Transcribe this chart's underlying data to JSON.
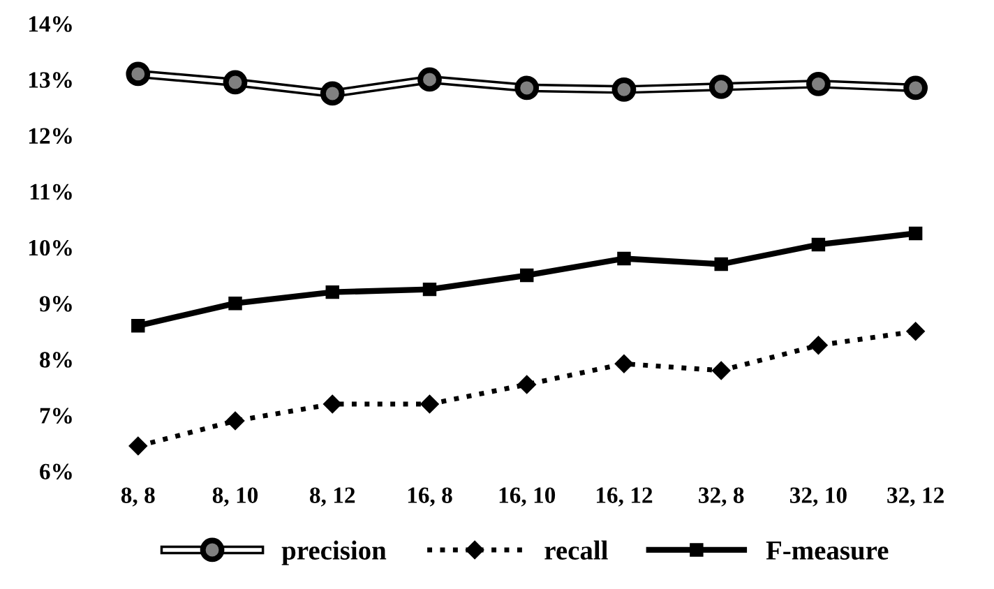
{
  "chart_data": {
    "type": "line",
    "categories": [
      "8, 8",
      "8, 10",
      "8, 12",
      "16, 8",
      "16, 10",
      "16, 12",
      "32, 8",
      "32, 10",
      "32, 12"
    ],
    "series": [
      {
        "name": "precision",
        "color": "#808080",
        "marker": "circle",
        "line_style": "solid",
        "values": [
          13.1,
          12.95,
          12.75,
          13.0,
          12.85,
          12.82,
          12.87,
          12.92,
          12.85
        ]
      },
      {
        "name": "recall",
        "color": "#000000",
        "marker": "diamond",
        "line_style": "dotted",
        "values": [
          6.45,
          6.9,
          7.2,
          7.2,
          7.55,
          7.92,
          7.8,
          8.25,
          8.5
        ]
      },
      {
        "name": "F-measure",
        "color": "#000000",
        "marker": "square",
        "line_style": "solid",
        "values": [
          8.6,
          9.0,
          9.2,
          9.25,
          9.5,
          9.8,
          9.7,
          10.05,
          10.25
        ]
      }
    ],
    "ylim": [
      6,
      14
    ],
    "yticks": [
      {
        "value": 6,
        "label": "6%"
      },
      {
        "value": 7,
        "label": "7%"
      },
      {
        "value": 8,
        "label": "8%"
      },
      {
        "value": 9,
        "label": "9%"
      },
      {
        "value": 10,
        "label": "10%"
      },
      {
        "value": 11,
        "label": "11%"
      },
      {
        "value": 12,
        "label": "12%"
      },
      {
        "value": 13,
        "label": "13%"
      },
      {
        "value": 14,
        "label": "14%"
      }
    ],
    "grid": false,
    "legend": "bottom"
  }
}
